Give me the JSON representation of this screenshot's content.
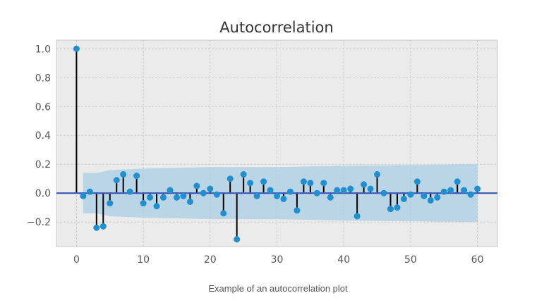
{
  "caption": "Example of an autocorrelation plot",
  "chart_data": {
    "type": "stem",
    "title": "Autocorrelation",
    "xlabel": "",
    "ylabel": "",
    "xlim": [
      -3,
      63
    ],
    "ylim": [
      -0.37,
      1.06
    ],
    "xticks": [
      0,
      10,
      20,
      30,
      40,
      50,
      60
    ],
    "yticks": [
      1.0,
      0.8,
      0.6,
      0.4,
      0.2,
      0.0,
      -0.2
    ],
    "ytick_labels": [
      "1.0",
      "0.8",
      "0.6",
      "0.4",
      "0.2",
      "0.0",
      "−0.2"
    ],
    "grid": true,
    "lags": [
      0,
      1,
      2,
      3,
      4,
      5,
      6,
      7,
      8,
      9,
      10,
      11,
      12,
      13,
      14,
      15,
      16,
      17,
      18,
      19,
      20,
      21,
      22,
      23,
      24,
      25,
      26,
      27,
      28,
      29,
      30,
      31,
      32,
      33,
      34,
      35,
      36,
      37,
      38,
      39,
      40,
      41,
      42,
      43,
      44,
      45,
      46,
      47,
      48,
      49,
      50,
      51,
      52,
      53,
      54,
      55,
      56,
      57,
      58,
      59,
      60
    ],
    "values": [
      1.0,
      -0.02,
      0.01,
      -0.24,
      -0.23,
      -0.07,
      0.09,
      0.13,
      0.01,
      0.12,
      -0.07,
      -0.03,
      -0.09,
      -0.03,
      0.02,
      -0.03,
      -0.02,
      -0.06,
      0.05,
      0.0,
      0.03,
      -0.01,
      -0.14,
      0.1,
      -0.32,
      0.13,
      0.07,
      -0.02,
      0.08,
      0.02,
      -0.02,
      -0.04,
      0.01,
      -0.12,
      0.08,
      0.07,
      0.0,
      0.07,
      -0.03,
      0.02,
      0.02,
      0.03,
      -0.16,
      0.06,
      0.03,
      0.13,
      0.0,
      -0.11,
      -0.1,
      -0.04,
      -0.01,
      0.08,
      -0.02,
      -0.05,
      -0.03,
      0.01,
      0.02,
      0.08,
      0.02,
      -0.01,
      0.03
    ],
    "confidence_band": {
      "x": [
        1,
        2,
        3,
        4,
        5,
        10,
        20,
        30,
        40,
        50,
        60
      ],
      "upper": [
        0.14,
        0.14,
        0.14,
        0.15,
        0.16,
        0.17,
        0.18,
        0.18,
        0.19,
        0.195,
        0.2
      ],
      "lower": [
        -0.14,
        -0.14,
        -0.14,
        -0.15,
        -0.16,
        -0.17,
        -0.18,
        -0.18,
        -0.19,
        -0.195,
        -0.2
      ]
    },
    "colors": {
      "plot_background": "#ebebeb",
      "frame": "#c8c8c8",
      "grid": "#c5c5c5",
      "band": "#a9cde3",
      "marker": "#1f8fcf",
      "stem": "#000000",
      "zero_line": "#3b57b1"
    }
  }
}
